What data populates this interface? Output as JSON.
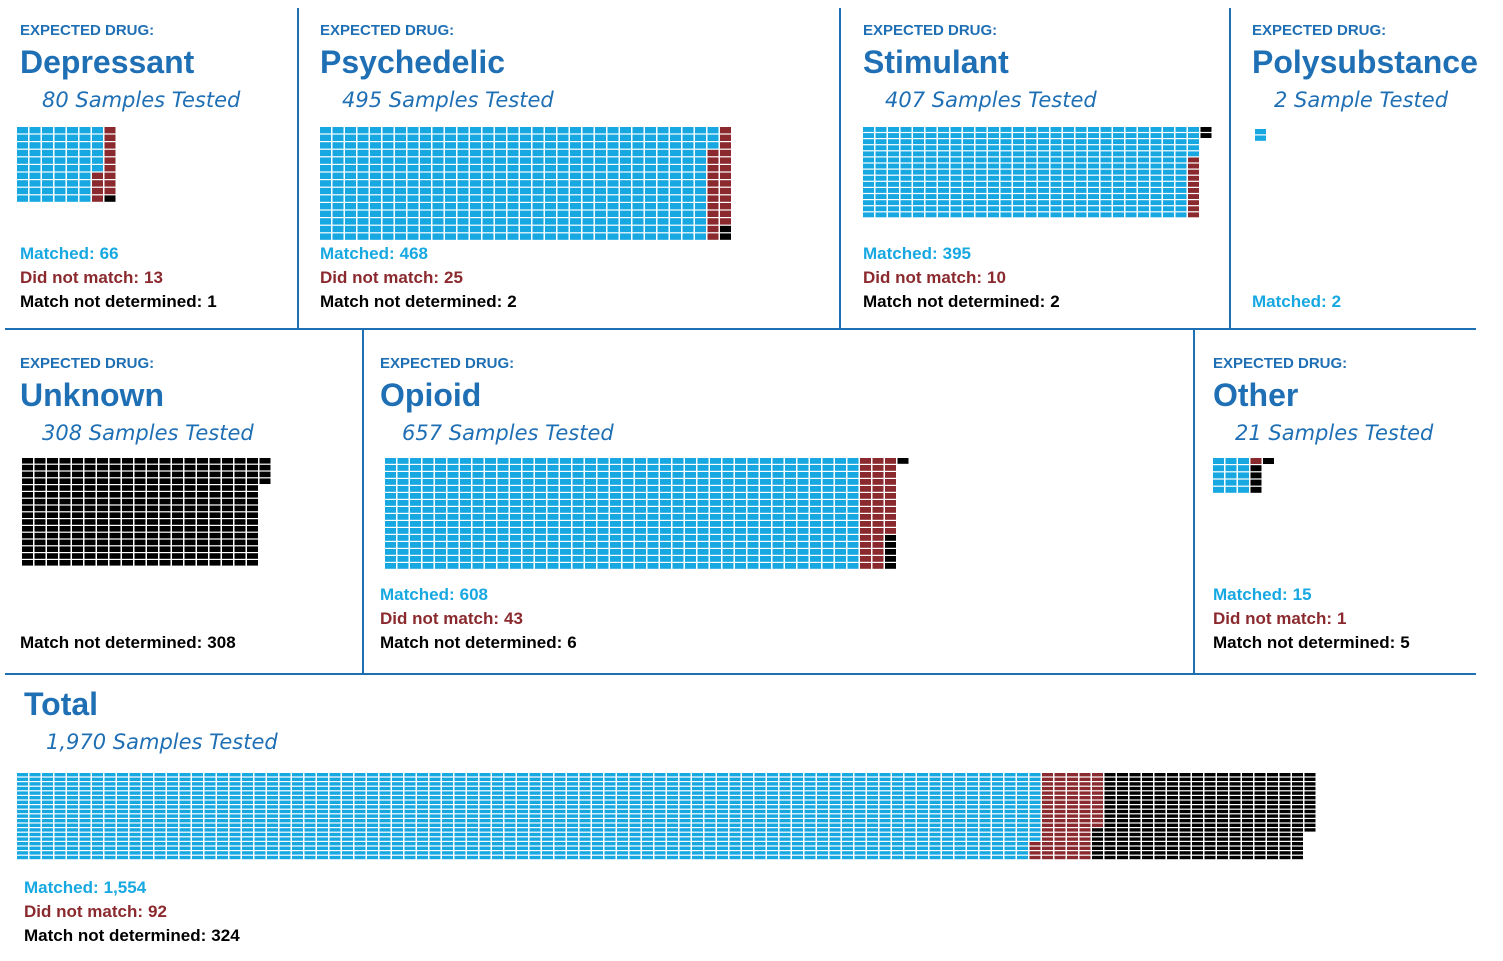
{
  "chart_data": [
    {
      "type": "waffle",
      "label": "EXPECTED DRUG:",
      "title": "Depressant",
      "subtitle": "80 Samples Tested",
      "series": [
        {
          "name": "Matched:",
          "color": "#17a8e2",
          "value": 66
        },
        {
          "name": "Did not match:",
          "color": "#8b2a2e",
          "value": 13
        },
        {
          "name": "Match not determined:",
          "color": "#000000",
          "value": 1
        }
      ]
    },
    {
      "type": "waffle",
      "label": "EXPECTED DRUG:",
      "title": "Psychedelic",
      "subtitle": "495 Samples Tested",
      "series": [
        {
          "name": "Matched:",
          "color": "#17a8e2",
          "value": 468
        },
        {
          "name": "Did not match:",
          "color": "#8b2a2e",
          "value": 25
        },
        {
          "name": "Match not determined:",
          "color": "#000000",
          "value": 2
        }
      ]
    },
    {
      "type": "waffle",
      "label": "EXPECTED DRUG:",
      "title": "Stimulant",
      "subtitle": "407 Samples Tested",
      "series": [
        {
          "name": "Matched:",
          "color": "#17a8e2",
          "value": 395
        },
        {
          "name": "Did not match:",
          "color": "#8b2a2e",
          "value": 10
        },
        {
          "name": "Match not determined:",
          "color": "#000000",
          "value": 2
        }
      ]
    },
    {
      "type": "waffle",
      "label": "EXPECTED DRUG:",
      "title": "Polysubstance",
      "subtitle": "2 Sample Tested",
      "series": [
        {
          "name": "Matched:",
          "color": "#17a8e2",
          "value": 2
        }
      ]
    },
    {
      "type": "waffle",
      "label": "EXPECTED DRUG:",
      "title": "Unknown",
      "subtitle": "308 Samples Tested",
      "series": [
        {
          "name": "Match not determined:",
          "color": "#000000",
          "value": 308
        }
      ]
    },
    {
      "type": "waffle",
      "label": "EXPECTED DRUG:",
      "title": "Opioid",
      "subtitle": "657 Samples Tested",
      "series": [
        {
          "name": "Matched:",
          "color": "#17a8e2",
          "value": 608
        },
        {
          "name": "Did not match:",
          "color": "#8b2a2e",
          "value": 43
        },
        {
          "name": "Match not determined:",
          "color": "#000000",
          "value": 6
        }
      ]
    },
    {
      "type": "waffle",
      "label": "EXPECTED DRUG:",
      "title": "Other",
      "subtitle": "21 Samples Tested",
      "series": [
        {
          "name": "Matched:",
          "color": "#17a8e2",
          "value": 15
        },
        {
          "name": "Did not match:",
          "color": "#8b2a2e",
          "value": 1
        },
        {
          "name": "Match not determined:",
          "color": "#000000",
          "value": 5
        }
      ]
    },
    {
      "type": "waffle",
      "title": "Total",
      "subtitle": "1,970 Samples Tested",
      "series": [
        {
          "name": "Matched:",
          "color": "#17a8e2",
          "value": 1554,
          "value_label": "1,554"
        },
        {
          "name": "Did not match:",
          "color": "#8b2a2e",
          "value": 92
        },
        {
          "name": "Match not determined:",
          "color": "#000000",
          "value": 324
        }
      ]
    }
  ]
}
